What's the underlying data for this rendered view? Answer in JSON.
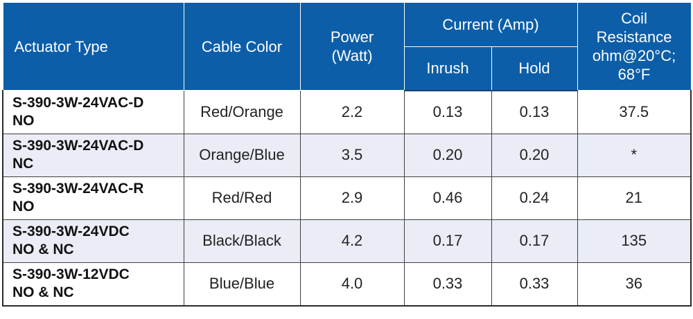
{
  "table": {
    "headers": {
      "actuator_type": "Actuator Type",
      "cable_color": "Cable Color",
      "power": [
        "Power",
        "(Watt)"
      ],
      "current": "Current (Amp)",
      "inrush": "Inrush",
      "hold": "Hold",
      "coil_resistance": [
        "Coil",
        "Resistance",
        "ohm@20°C;",
        "68°F"
      ]
    },
    "rows": [
      {
        "type": [
          "S-390-3W-24VAC-D",
          "NO"
        ],
        "cable_color": "Red/Orange",
        "power": "2.2",
        "inrush": "0.13",
        "hold": "0.13",
        "coil_resistance": "37.5"
      },
      {
        "type": [
          "S-390-3W-24VAC-D",
          "NC"
        ],
        "cable_color": "Orange/Blue",
        "power": "3.5",
        "inrush": "0.20",
        "hold": "0.20",
        "coil_resistance": "*"
      },
      {
        "type": [
          "S-390-3W-24VAC-R",
          "NO"
        ],
        "cable_color": "Red/Red",
        "power": "2.9",
        "inrush": "0.46",
        "hold": "0.24",
        "coil_resistance": "21"
      },
      {
        "type": [
          "S-390-3W-24VDC",
          "NO & NC"
        ],
        "cable_color": "Black/Black",
        "power": "4.2",
        "inrush": "0.17",
        "hold": "0.17",
        "coil_resistance": "135"
      },
      {
        "type": [
          "S-390-3W-12VDC",
          "NO & NC"
        ],
        "cable_color": "Blue/Blue",
        "power": "4.0",
        "inrush": "0.33",
        "hold": "0.33",
        "coil_resistance": "36"
      }
    ]
  }
}
